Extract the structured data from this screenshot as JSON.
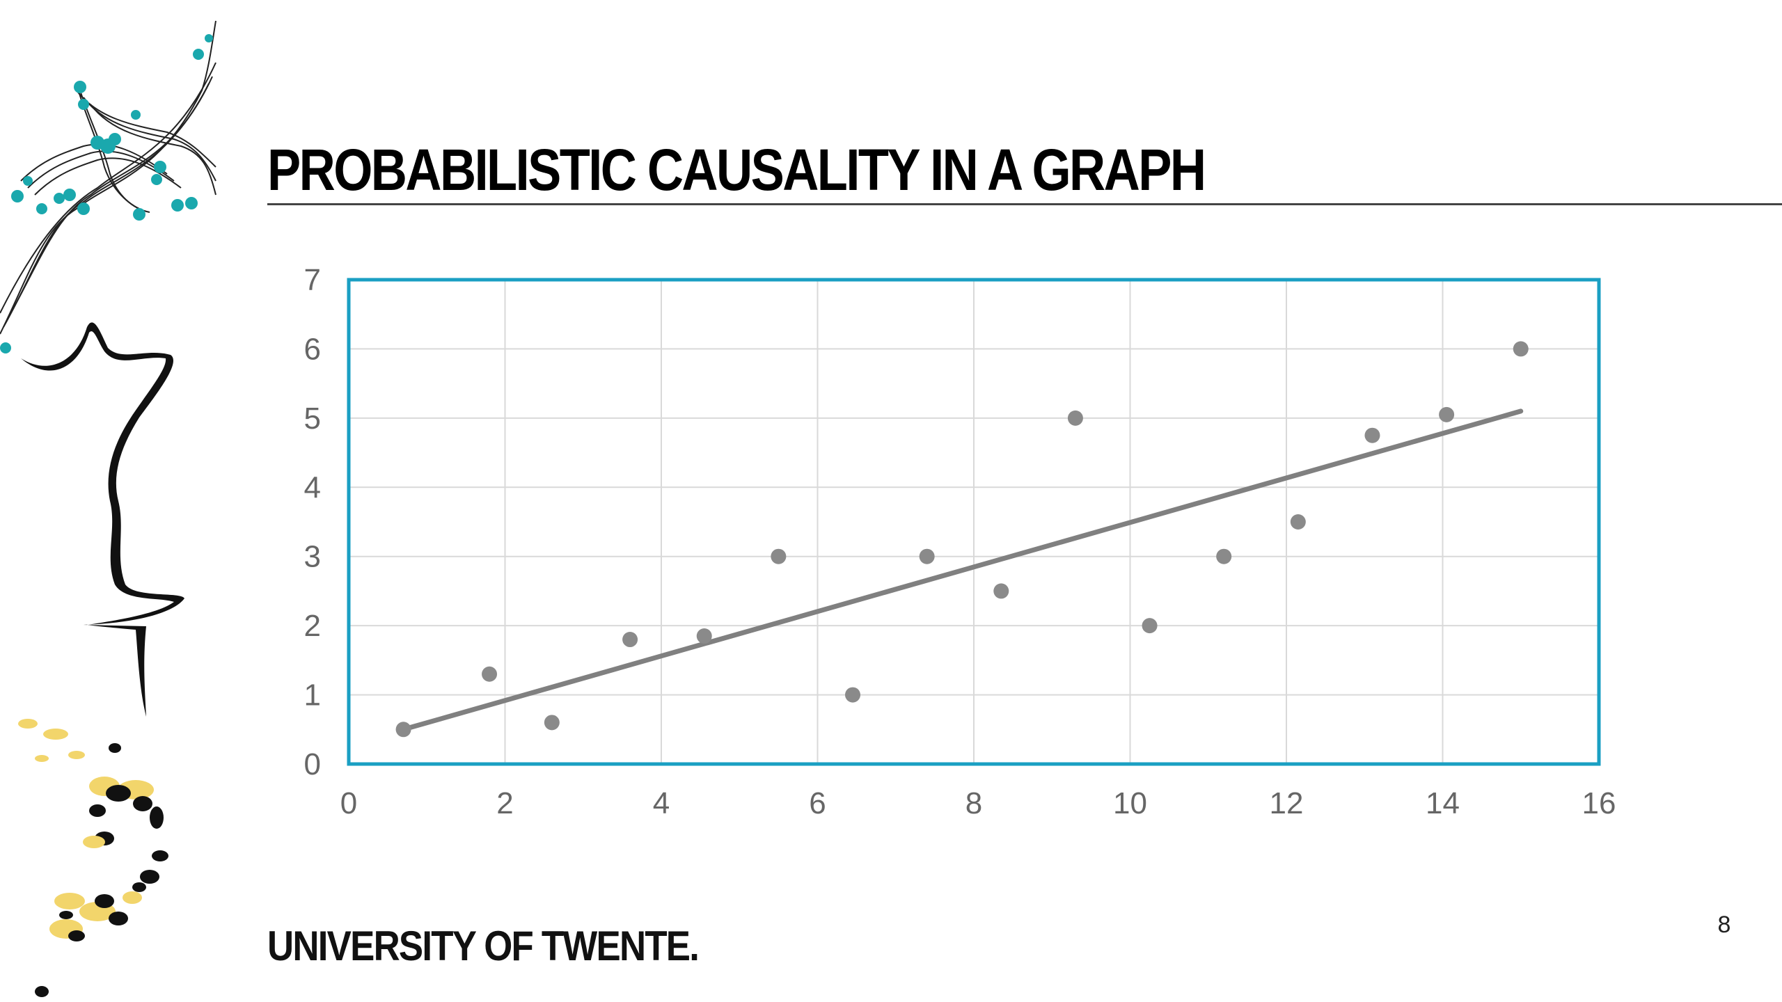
{
  "slide": {
    "title": "PROBABILISTIC CAUSALITY IN A GRAPH",
    "brand": "UNIVERSITY OF TWENTE.",
    "page_number": "8"
  },
  "colors": {
    "accent": "#1a9fc3",
    "points": "#8a8a8a",
    "trendline": "#808080",
    "grid": "#d9d9d9",
    "teal_deco": "#1aa8ad",
    "yellow_deco": "#f2d56b"
  },
  "chart_data": {
    "type": "scatter",
    "title": "",
    "xlabel": "",
    "ylabel": "",
    "xlim": [
      0,
      16
    ],
    "ylim": [
      0,
      7
    ],
    "x_ticks": [
      "0",
      "2",
      "4",
      "6",
      "8",
      "10",
      "12",
      "14",
      "16"
    ],
    "y_ticks": [
      "0",
      "1",
      "2",
      "3",
      "4",
      "5",
      "6",
      "7"
    ],
    "grid": true,
    "legend": "none",
    "series": [
      {
        "points": [
          {
            "x": 0.7,
            "y": 0.5
          },
          {
            "x": 1.8,
            "y": 1.3
          },
          {
            "x": 2.6,
            "y": 0.6
          },
          {
            "x": 3.6,
            "y": 1.8
          },
          {
            "x": 4.55,
            "y": 1.85
          },
          {
            "x": 5.5,
            "y": 3.0
          },
          {
            "x": 6.45,
            "y": 1.0
          },
          {
            "x": 7.4,
            "y": 3.0
          },
          {
            "x": 8.35,
            "y": 2.5
          },
          {
            "x": 9.3,
            "y": 5.0
          },
          {
            "x": 10.25,
            "y": 2.0
          },
          {
            "x": 11.2,
            "y": 3.0
          },
          {
            "x": 12.15,
            "y": 3.5
          },
          {
            "x": 13.1,
            "y": 4.75
          },
          {
            "x": 14.05,
            "y": 5.05
          },
          {
            "x": 15.0,
            "y": 6.0
          }
        ]
      }
    ],
    "trendline": {
      "type": "linear",
      "x": [
        0.7,
        15.0
      ],
      "y": [
        0.5,
        5.1
      ]
    }
  }
}
